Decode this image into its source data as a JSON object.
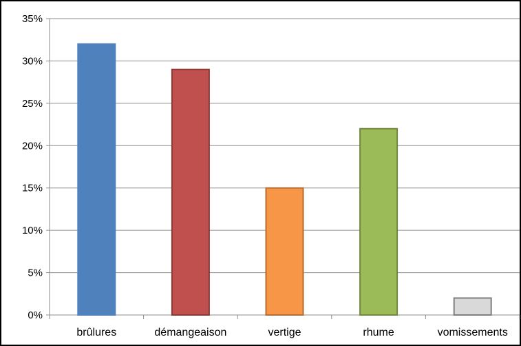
{
  "chart_data": {
    "type": "bar",
    "title": "",
    "xlabel": "",
    "ylabel": "",
    "ylim": [
      0,
      35
    ],
    "y_tick_values": [
      0,
      5,
      10,
      15,
      20,
      25,
      30,
      35
    ],
    "y_tick_labels": [
      "0%",
      "5%",
      "10%",
      "15%",
      "20%",
      "25%",
      "30%",
      "35%"
    ],
    "grid": true,
    "legend": "none",
    "categories": [
      "brûlures",
      "démangeaison",
      "vertige",
      "rhume",
      "vomissements"
    ],
    "values": [
      32,
      29,
      15,
      22,
      2
    ],
    "colors": [
      "#4f81bd",
      "#c0504d",
      "#f79646",
      "#9bbb59",
      "#d9d9d9"
    ],
    "border_colors": [
      "#4f81bd",
      "#8c3836",
      "#b66d31",
      "#71893f",
      "#7f7f7f"
    ]
  }
}
